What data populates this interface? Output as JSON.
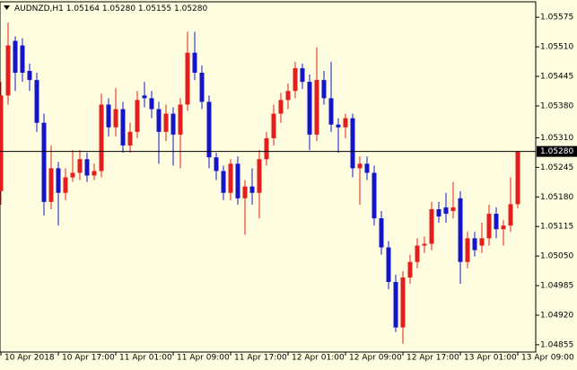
{
  "chart_data": {
    "type": "candlestick",
    "title": "AUDNZD,H1",
    "title_values": [
      "1.05164",
      "1.05280",
      "1.05155",
      "1.05280"
    ],
    "categories": [
      "10 Apr 2018",
      null,
      null,
      null,
      null,
      null,
      null,
      null,
      "10 Apr 17:00",
      null,
      null,
      null,
      null,
      null,
      null,
      null,
      "11 Apr 01:00",
      null,
      null,
      null,
      null,
      null,
      null,
      null,
      "11 Apr 09:00",
      null,
      null,
      null,
      null,
      null,
      null,
      null,
      "11 Apr 17:00",
      null,
      null,
      null,
      null,
      null,
      null,
      null,
      "12 Apr 01:00",
      null,
      null,
      null,
      null,
      null,
      null,
      null,
      "12 Apr 09:00",
      null,
      null,
      null,
      null,
      null,
      null,
      null,
      "12 Apr 17:00",
      null,
      null,
      null,
      null,
      null,
      null,
      null,
      "13 Apr 01:00",
      null,
      null,
      null,
      null,
      null,
      null,
      null,
      "13 Apr 09:00"
    ],
    "open": [
      1.05193,
      1.05403,
      1.05523,
      1.05513,
      1.05457,
      1.05437,
      1.05343,
      1.05169,
      1.05243,
      1.05189,
      1.05223,
      1.05233,
      1.05263,
      1.05227,
      1.05237,
      1.05383,
      1.05333,
      1.05373,
      1.05293,
      1.05323,
      1.05403,
      1.05397,
      1.05373,
      1.05323,
      1.05363,
      1.05317,
      1.05383,
      1.05497,
      1.05453,
      1.05389,
      1.05267,
      1.05237,
      1.05189,
      1.05253,
      1.05177,
      1.05203,
      1.05189,
      1.05263,
      1.05309,
      1.05363,
      1.05393,
      1.05413,
      1.05463,
      1.05433,
      1.05317,
      1.05437,
      1.05397,
      1.05339,
      1.05333,
      1.05353,
      1.05243,
      1.05253,
      1.05233,
      1.05133,
      1.05069,
      1.04993,
      1.04893,
      1.05003,
      1.05037,
      1.05073,
      1.05077,
      1.05153,
      1.05157,
      1.05149,
      1.05177,
      1.05037,
      1.05089,
      1.05073,
      1.05089,
      1.05143,
      1.05109,
      1.05117,
      1.05164
    ],
    "high": [
      1.05433,
      1.05563,
      1.05533,
      1.05529,
      1.05473,
      1.05453,
      1.05363,
      1.05293,
      1.05257,
      1.05243,
      1.05283,
      1.05283,
      1.05277,
      1.05253,
      1.05407,
      1.05397,
      1.05419,
      1.05389,
      1.05343,
      1.05413,
      1.05433,
      1.05413,
      1.05389,
      1.05383,
      1.05377,
      1.05397,
      1.05543,
      1.05543,
      1.05469,
      1.05403,
      1.05277,
      1.05249,
      1.05263,
      1.05269,
      1.05217,
      1.05243,
      1.05283,
      1.05323,
      1.05383,
      1.05409,
      1.05429,
      1.05477,
      1.05473,
      1.05449,
      1.05509,
      1.05457,
      1.05477,
      1.05353,
      1.05363,
      1.05363,
      1.05269,
      1.05269,
      1.05249,
      1.05149,
      1.05083,
      1.05009,
      1.05017,
      1.05053,
      1.05089,
      1.05093,
      1.05169,
      1.05169,
      1.05189,
      1.05213,
      1.05193,
      1.05103,
      1.05103,
      1.05123,
      1.05163,
      1.05157,
      1.05129,
      1.05223,
      1.0528
    ],
    "low": [
      1.05163,
      1.05383,
      1.05413,
      1.05433,
      1.05413,
      1.05323,
      1.05139,
      1.05153,
      1.05117,
      1.05173,
      1.05213,
      1.05217,
      1.05213,
      1.05217,
      1.05223,
      1.05313,
      1.05313,
      1.05277,
      1.05277,
      1.05309,
      1.05377,
      1.05353,
      1.05253,
      1.05303,
      1.05249,
      1.05243,
      1.05369,
      1.05437,
      1.05373,
      1.05243,
      1.05217,
      1.05173,
      1.05173,
      1.05163,
      1.05097,
      1.05163,
      1.05133,
      1.05249,
      1.05293,
      1.05343,
      1.05373,
      1.05397,
      1.05417,
      1.05283,
      1.05303,
      1.05383,
      1.05323,
      1.05277,
      1.05309,
      1.05223,
      1.05163,
      1.05217,
      1.05117,
      1.05053,
      1.04977,
      1.04883,
      1.04857,
      1.04989,
      1.05023,
      1.05057,
      1.05063,
      1.05123,
      1.05123,
      1.05133,
      1.04989,
      1.05023,
      1.05049,
      1.05057,
      1.05073,
      1.05089,
      1.05073,
      1.05103,
      1.05155
    ],
    "close": [
      1.05403,
      1.05513,
      1.05453,
      1.05453,
      1.05437,
      1.05343,
      1.05169,
      1.05243,
      1.05189,
      1.05223,
      1.05233,
      1.05263,
      1.05227,
      1.05237,
      1.05383,
      1.05333,
      1.05373,
      1.05293,
      1.05323,
      1.05393,
      1.05397,
      1.05373,
      1.05323,
      1.05363,
      1.05317,
      1.05383,
      1.05497,
      1.05453,
      1.05389,
      1.05267,
      1.05237,
      1.05189,
      1.05253,
      1.05177,
      1.05203,
      1.05189,
      1.05263,
      1.05309,
      1.05363,
      1.05393,
      1.05413,
      1.05463,
      1.05433,
      1.05317,
      1.05437,
      1.05397,
      1.05339,
      1.05333,
      1.05353,
      1.05243,
      1.05253,
      1.05233,
      1.05133,
      1.05069,
      1.04993,
      1.04893,
      1.05003,
      1.05037,
      1.05073,
      1.05077,
      1.05153,
      1.05137,
      1.05143,
      1.05157,
      1.05037,
      1.05089,
      1.05063,
      1.05089,
      1.05143,
      1.05109,
      1.05117,
      1.05164,
      1.0528
    ],
    "up_color": "#e41e1e",
    "down_color": "#1616c8",
    "ylim": [
      1.04839,
      1.05605
    ],
    "yticks": [
      1.05575,
      {
        "value": 1.0551,
        "label": "1.05510"
      },
      1.05445,
      {
        "value": 1.0538,
        "label": "1.05380"
      },
      {
        "value": 1.0531,
        "label": "1.05310"
      },
      1.05245,
      {
        "value": 1.0518,
        "label": "1.05180"
      },
      1.05115,
      {
        "value": 1.0505,
        "label": "1.05050"
      },
      1.04985,
      {
        "value": 1.0492,
        "label": "1.04920"
      },
      1.04855
    ],
    "current_price": {
      "value": 1.0528,
      "label": "1.05280"
    }
  }
}
